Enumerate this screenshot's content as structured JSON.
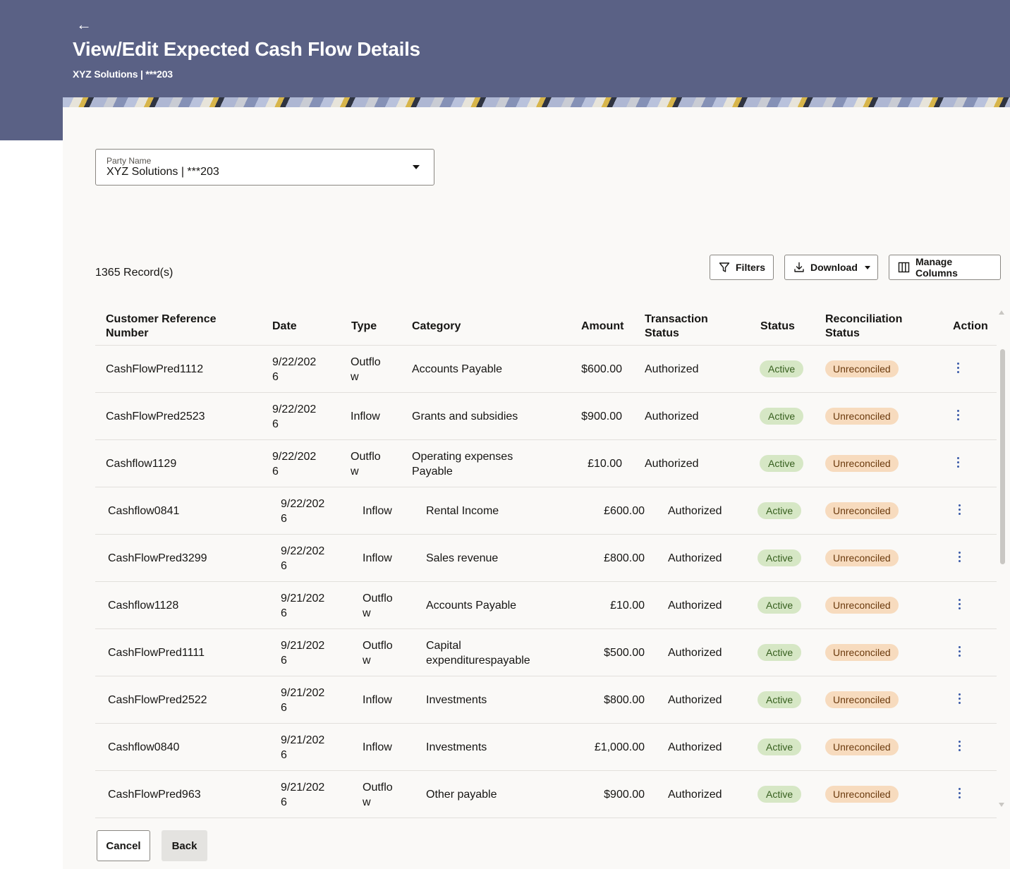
{
  "header": {
    "back_icon": "arrow-left-icon",
    "title": "View/Edit Expected Cash Flow Details",
    "subtitle": "XYZ Solutions | ***203"
  },
  "party": {
    "label": "Party Name",
    "value": "XYZ Solutions | ***203"
  },
  "toolbar": {
    "records": "1365 Record(s)",
    "filters": "Filters",
    "download": "Download",
    "manage_columns": "Manage Columns"
  },
  "table": {
    "headers": {
      "ref": [
        "Customer Reference",
        "Number"
      ],
      "date": "Date",
      "type": "Type",
      "category": "Category",
      "amount": "Amount",
      "txn_status": [
        "Transaction",
        "Status"
      ],
      "status": "Status",
      "recon": [
        "Reconciliation",
        "Status"
      ],
      "action": "Action"
    },
    "rows": [
      {
        "ref": "CashFlowPred1112",
        "date": [
          "9/22/202",
          "6"
        ],
        "type": [
          "Outflo",
          "w"
        ],
        "category": [
          "Accounts Payable"
        ],
        "amount": "$600.00",
        "txn": "Authorized",
        "status": "Active",
        "recon": "Unreconciled"
      },
      {
        "ref": "CashFlowPred2523",
        "date": [
          "9/22/202",
          "6"
        ],
        "type": [
          "Inflow"
        ],
        "category": [
          "Grants and subsidies"
        ],
        "amount": "$900.00",
        "txn": "Authorized",
        "status": "Active",
        "recon": "Unreconciled"
      },
      {
        "ref": "Cashflow1129",
        "date": [
          "9/22/202",
          "6"
        ],
        "type": [
          "Outflo",
          "w"
        ],
        "category": [
          "Operating expenses",
          "Payable"
        ],
        "amount": "£10.00",
        "txn": "Authorized",
        "status": "Active",
        "recon": "Unreconciled"
      },
      {
        "ref": "Cashflow0841",
        "date": [
          "9/22/202",
          "6"
        ],
        "type": [
          "Inflow"
        ],
        "category": [
          "Rental Income"
        ],
        "amount": "£600.00",
        "txn": "Authorized",
        "status": "Active",
        "recon": "Unreconciled"
      },
      {
        "ref": "CashFlowPred3299",
        "date": [
          "9/22/202",
          "6"
        ],
        "type": [
          "Inflow"
        ],
        "category": [
          "Sales revenue"
        ],
        "amount": "£800.00",
        "txn": "Authorized",
        "status": "Active",
        "recon": "Unreconciled"
      },
      {
        "ref": "Cashflow1128",
        "date": [
          "9/21/202",
          "6"
        ],
        "type": [
          "Outflo",
          "w"
        ],
        "category": [
          "Accounts Payable"
        ],
        "amount": "£10.00",
        "txn": "Authorized",
        "status": "Active",
        "recon": "Unreconciled"
      },
      {
        "ref": "CashFlowPred1111",
        "date": [
          "9/21/202",
          "6"
        ],
        "type": [
          "Outflo",
          "w"
        ],
        "category": [
          "Capital",
          "expenditurespayable"
        ],
        "amount": "$500.00",
        "txn": "Authorized",
        "status": "Active",
        "recon": "Unreconciled"
      },
      {
        "ref": "CashFlowPred2522",
        "date": [
          "9/21/202",
          "6"
        ],
        "type": [
          "Inflow"
        ],
        "category": [
          "Investments"
        ],
        "amount": "$800.00",
        "txn": "Authorized",
        "status": "Active",
        "recon": "Unreconciled"
      },
      {
        "ref": "Cashflow0840",
        "date": [
          "9/21/202",
          "6"
        ],
        "type": [
          "Inflow"
        ],
        "category": [
          "Investments"
        ],
        "amount": "£1,000.00",
        "txn": "Authorized",
        "status": "Active",
        "recon": "Unreconciled"
      },
      {
        "ref": "CashFlowPred963",
        "date": [
          "9/21/202",
          "6"
        ],
        "type": [
          "Outflo",
          "w"
        ],
        "category": [
          "Other payable"
        ],
        "amount": "$900.00",
        "txn": "Authorized",
        "status": "Active",
        "recon": "Unreconciled"
      }
    ]
  },
  "footer": {
    "cancel": "Cancel",
    "back": "Back"
  },
  "colors": {
    "header_bg": "#5a6185",
    "active_badge": "#d6e7c5",
    "unreconciled_badge": "#f7dbbe",
    "kebab": "#3b5ba8"
  }
}
